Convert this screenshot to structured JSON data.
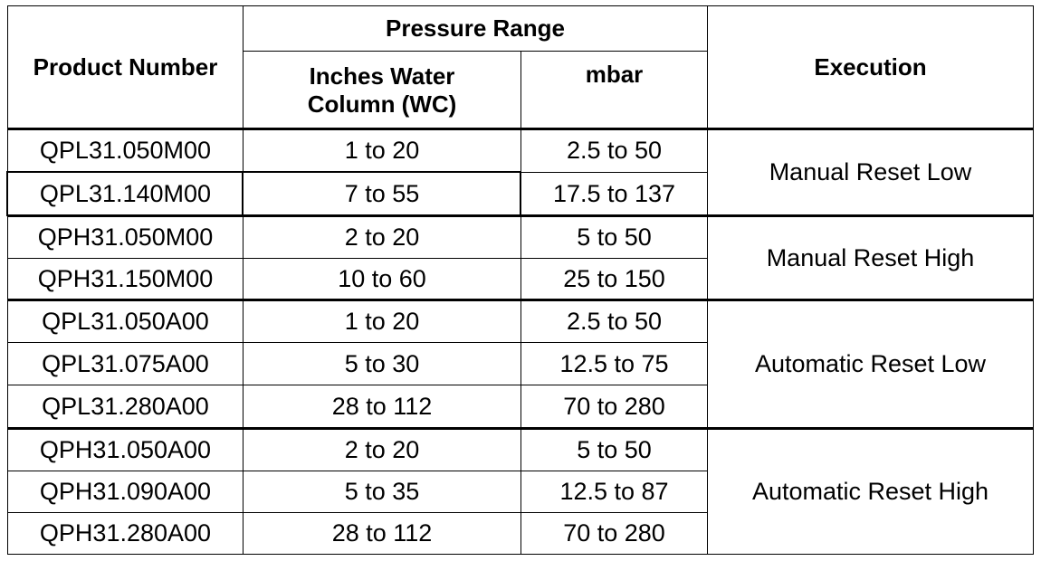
{
  "header": {
    "product_number": "Product Number",
    "pressure_range": "Pressure Range",
    "inches_wc": "Inches Water Column (WC)",
    "mbar": "mbar",
    "execution": "Execution"
  },
  "groups": [
    {
      "execution": "Manual Reset Low",
      "rows": [
        [
          "QPL31.050M00",
          "1 to 20",
          "2.5 to 50"
        ],
        [
          "QPL31.140M00",
          "7 to 55",
          "17.5 to 137"
        ]
      ]
    },
    {
      "execution": "Manual Reset High",
      "rows": [
        [
          "QPH31.050M00",
          "2 to 20",
          "5 to 50"
        ],
        [
          "QPH31.150M00",
          "10 to 60",
          "25 to 150"
        ]
      ]
    },
    {
      "execution": "Automatic Reset Low",
      "rows": [
        [
          "QPL31.050A00",
          "1 to 20",
          "2.5 to 50"
        ],
        [
          "QPL31.075A00",
          "5 to 30",
          "12.5 to 75"
        ],
        [
          "QPL31.280A00",
          "28 to 112",
          "70 to 280"
        ]
      ]
    },
    {
      "execution": "Automatic Reset High",
      "rows": [
        [
          "QPH31.050A00",
          "2 to 20",
          "5 to 50"
        ],
        [
          "QPH31.090A00",
          "5 to 35",
          "12.5 to 87"
        ],
        [
          "QPH31.280A00",
          "28 to 112",
          "70 to 280"
        ]
      ]
    }
  ]
}
